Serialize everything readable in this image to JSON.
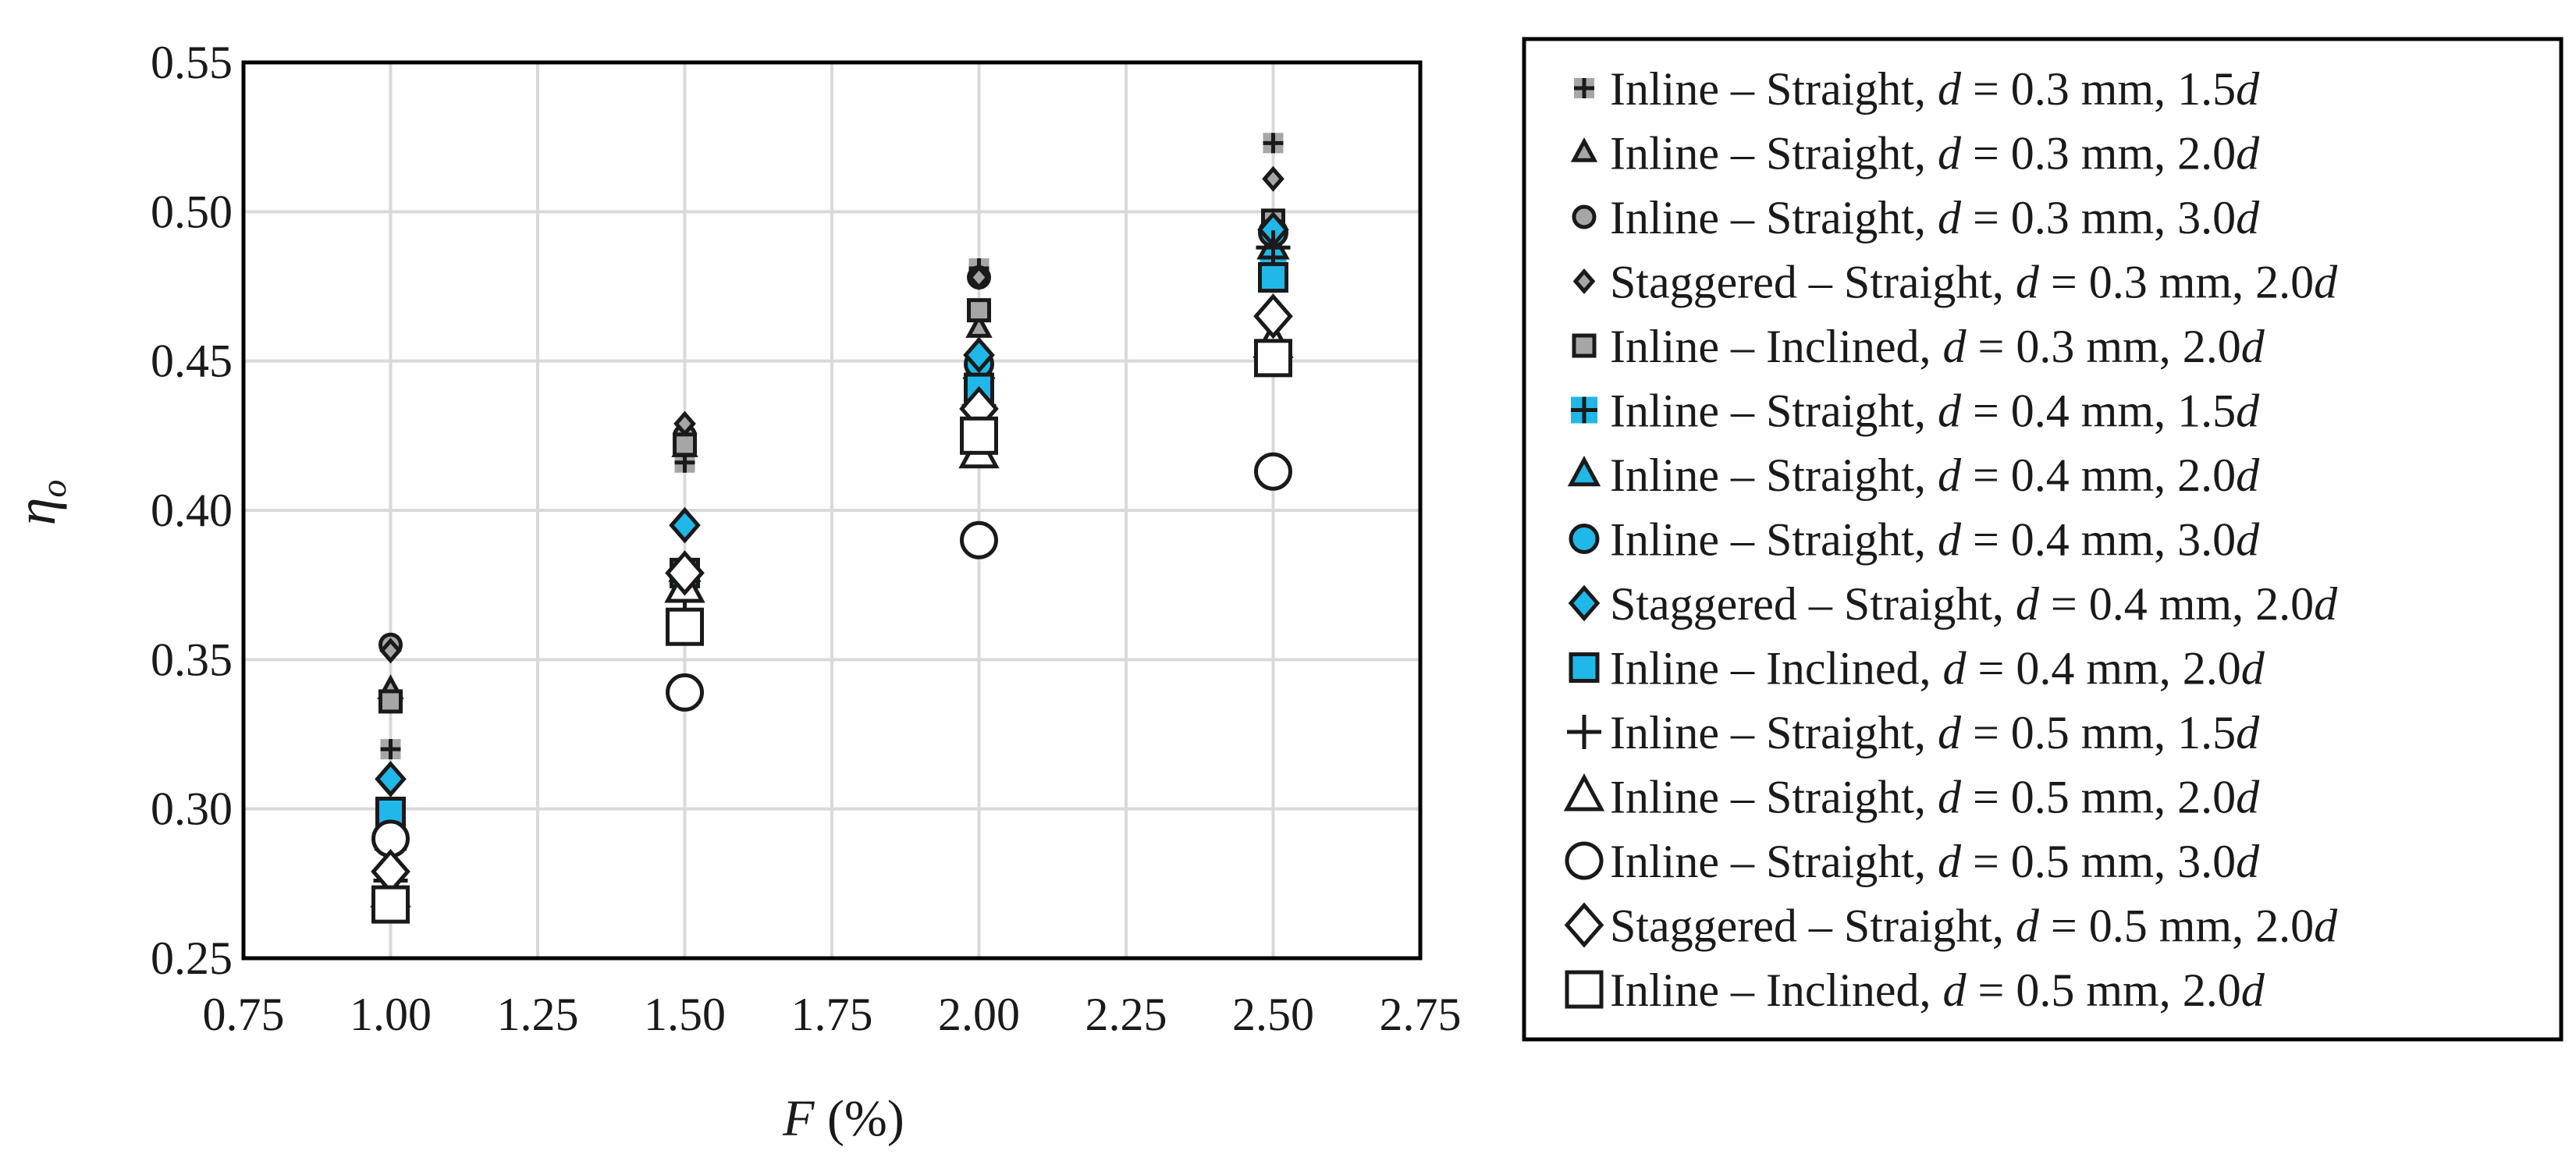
{
  "chart_data": {
    "type": "scatter",
    "title": "",
    "xlabel": {
      "var": "F",
      "unit": "(%)"
    },
    "ylabel": {
      "var": "η",
      "sub": "o"
    },
    "xlim": [
      0.75,
      2.75
    ],
    "ylim": [
      0.25,
      0.55
    ],
    "xticks": [
      "0.75",
      "1.00",
      "1.25",
      "1.50",
      "1.75",
      "2.00",
      "2.25",
      "2.50",
      "2.75"
    ],
    "yticks": [
      "0.25",
      "0.30",
      "0.35",
      "0.40",
      "0.45",
      "0.50",
      "0.55"
    ],
    "grid": true,
    "legend_position": "right-outside",
    "series": [
      {
        "prefix": "Inline – Straight, ",
        "d": "0.3",
        "suffix": "1.5",
        "marker": "plus-square",
        "fill": "#a6a6a6",
        "x": [
          1.0,
          1.5,
          2.0,
          2.5
        ],
        "y": [
          0.32,
          0.416,
          0.481,
          0.523
        ]
      },
      {
        "prefix": "Inline – Straight, ",
        "d": "0.3",
        "suffix": "2.0",
        "marker": "triangle",
        "fill": "#a6a6a6",
        "x": [
          1.0,
          1.5,
          2.0,
          2.5
        ],
        "y": [
          0.34,
          0.421,
          0.461,
          0.495
        ]
      },
      {
        "prefix": "Inline – Straight, ",
        "d": "0.3",
        "suffix": "3.0",
        "marker": "circle",
        "fill": "#a6a6a6",
        "x": [
          1.0,
          1.5,
          2.0,
          2.5
        ],
        "y": [
          0.355,
          0.425,
          0.478,
          0.497
        ]
      },
      {
        "prefix": "Staggered – Straight, ",
        "d": "0.3",
        "suffix": "2.0",
        "marker": "diamond",
        "fill": "#a6a6a6",
        "x": [
          1.0,
          1.5,
          2.0,
          2.5
        ],
        "y": [
          0.353,
          0.429,
          0.478,
          0.511
        ]
      },
      {
        "prefix": "Inline – Inclined, ",
        "d": "0.3",
        "suffix": "2.0",
        "marker": "square",
        "fill": "#a6a6a6",
        "x": [
          1.0,
          1.5,
          2.0,
          2.5
        ],
        "y": [
          0.336,
          0.422,
          0.467,
          0.497
        ]
      },
      {
        "prefix": "Inline – Straight, ",
        "d": "0.4",
        "suffix": "1.5",
        "marker": "plus-square",
        "fill": "#1fb8e8",
        "x": [
          1.0,
          1.5,
          2.0,
          2.5
        ],
        "y": [
          0.296,
          0.378,
          0.442,
          0.48
        ]
      },
      {
        "prefix": "Inline – Straight, ",
        "d": "0.4",
        "suffix": "2.0",
        "marker": "triangle",
        "fill": "#1fb8e8",
        "x": [
          1.0,
          1.5,
          2.0,
          2.5
        ],
        "y": [
          0.29,
          0.38,
          0.448,
          0.488
        ]
      },
      {
        "prefix": "Inline – Straight, ",
        "d": "0.4",
        "suffix": "3.0",
        "marker": "circle",
        "fill": "#1fb8e8",
        "x": [
          1.0,
          1.5,
          2.0,
          2.5
        ],
        "y": [
          0.289,
          0.378,
          0.449,
          0.493
        ]
      },
      {
        "prefix": "Staggered – Straight, ",
        "d": "0.4",
        "suffix": "2.0",
        "marker": "diamond",
        "fill": "#1fb8e8",
        "x": [
          1.0,
          1.5,
          2.0,
          2.5
        ],
        "y": [
          0.31,
          0.395,
          0.452,
          0.494
        ]
      },
      {
        "prefix": "Inline – Inclined, ",
        "d": "0.4",
        "suffix": "2.0",
        "marker": "square",
        "fill": "#1fb8e8",
        "x": [
          1.0,
          1.5,
          2.0,
          2.5
        ],
        "y": [
          0.299,
          0.379,
          0.441,
          0.478
        ]
      },
      {
        "prefix": "Inline – Straight, ",
        "d": "0.5",
        "suffix": "1.5",
        "marker": "plus",
        "fill": "none",
        "x": [
          1.0,
          1.5,
          2.0,
          2.5
        ],
        "y": [
          0.276,
          0.37,
          0.435,
          0.488
        ]
      },
      {
        "prefix": "Inline – Straight, ",
        "d": "0.5",
        "suffix": "2.0",
        "marker": "triangle",
        "fill": "#ffffff",
        "x": [
          1.0,
          1.5,
          2.0,
          2.5
        ],
        "y": [
          0.272,
          0.374,
          0.419,
          0.456
        ]
      },
      {
        "prefix": "Inline – Straight, ",
        "d": "0.5",
        "suffix": "3.0",
        "marker": "circle",
        "fill": "#ffffff",
        "x": [
          1.0,
          1.5,
          2.0,
          2.5
        ],
        "y": [
          0.29,
          0.339,
          0.39,
          0.413
        ]
      },
      {
        "prefix": "Staggered – Straight, ",
        "d": "0.5",
        "suffix": "2.0",
        "marker": "diamond",
        "fill": "#ffffff",
        "x": [
          1.0,
          1.5,
          2.0,
          2.5
        ],
        "y": [
          0.279,
          0.379,
          0.434,
          0.465
        ]
      },
      {
        "prefix": "Inline – Inclined, ",
        "d": "0.5",
        "suffix": "2.0",
        "marker": "square",
        "fill": "#ffffff",
        "x": [
          1.0,
          1.5,
          2.0,
          2.5
        ],
        "y": [
          0.268,
          0.361,
          0.425,
          0.451
        ]
      }
    ]
  }
}
